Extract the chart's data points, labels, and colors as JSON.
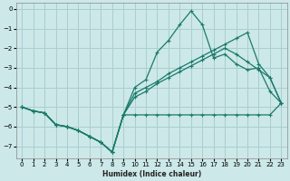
{
  "xlabel": "Humidex (Indice chaleur)",
  "bg_color": "#cce8e8",
  "grid_color": "#aacece",
  "line_color": "#1a7a6a",
  "xlim": [
    -0.5,
    23.5
  ],
  "ylim": [
    -7.6,
    0.3
  ],
  "xticks": [
    0,
    1,
    2,
    3,
    4,
    5,
    6,
    7,
    8,
    9,
    10,
    11,
    12,
    13,
    14,
    15,
    16,
    17,
    18,
    19,
    20,
    21,
    22,
    23
  ],
  "yticks": [
    0,
    -1,
    -2,
    -3,
    -4,
    -5,
    -6,
    -7
  ],
  "series": [
    {
      "x": [
        0,
        1,
        2,
        3,
        4,
        5,
        6,
        7,
        8,
        9,
        10,
        11,
        12,
        13,
        14,
        15,
        16,
        17,
        18,
        19,
        20,
        21,
        22,
        23
      ],
      "y": [
        -5.0,
        -5.2,
        -5.3,
        -5.9,
        -6.0,
        -6.2,
        -6.5,
        -6.8,
        -7.3,
        -5.4,
        -5.4,
        -5.4,
        -5.4,
        -5.4,
        -5.4,
        -5.4,
        -5.4,
        -5.4,
        -5.4,
        -5.4,
        -5.4,
        -5.4,
        -5.4,
        -4.8
      ]
    },
    {
      "x": [
        0,
        1,
        2,
        3,
        4,
        5,
        6,
        7,
        8,
        9,
        10,
        11,
        12,
        13,
        14,
        15,
        16,
        17,
        18,
        19,
        20,
        21,
        22,
        23
      ],
      "y": [
        -5.0,
        -5.2,
        -5.3,
        -5.9,
        -6.0,
        -6.2,
        -6.5,
        -6.8,
        -7.3,
        -5.4,
        -4.5,
        -4.2,
        -3.8,
        -3.5,
        -3.2,
        -2.9,
        -2.6,
        -2.3,
        -2.0,
        -2.3,
        -2.7,
        -3.1,
        -3.5,
        -4.8
      ]
    },
    {
      "x": [
        0,
        1,
        2,
        3,
        4,
        5,
        6,
        7,
        8,
        9,
        10,
        11,
        12,
        13,
        14,
        15,
        16,
        17,
        18,
        19,
        20,
        21,
        22,
        23
      ],
      "y": [
        -5.0,
        -5.2,
        -5.3,
        -5.9,
        -6.0,
        -6.2,
        -6.5,
        -6.8,
        -7.3,
        -5.4,
        -4.3,
        -4.0,
        -3.7,
        -3.3,
        -3.0,
        -2.7,
        -2.4,
        -2.1,
        -1.8,
        -1.5,
        -1.2,
        -2.8,
        -3.5,
        -4.8
      ]
    },
    {
      "x": [
        0,
        1,
        2,
        3,
        4,
        5,
        6,
        7,
        8,
        9,
        10,
        11,
        12,
        13,
        14,
        15,
        16,
        17,
        18,
        19,
        20,
        21,
        22,
        23
      ],
      "y": [
        -5.0,
        -5.2,
        -5.3,
        -5.9,
        -6.0,
        -6.2,
        -6.5,
        -6.8,
        -7.3,
        -5.4,
        -4.0,
        -3.6,
        -2.2,
        -1.6,
        -0.8,
        -0.1,
        -0.8,
        -2.5,
        -2.3,
        -2.8,
        -3.1,
        -3.0,
        -4.2,
        -4.8
      ]
    }
  ]
}
